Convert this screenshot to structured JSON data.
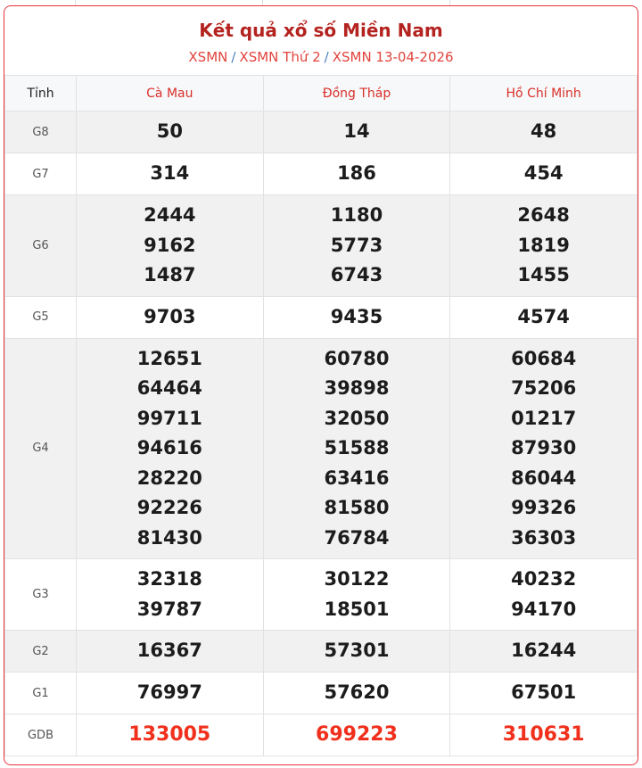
{
  "header": {
    "title": "Kết quả xổ số Miền Nam",
    "breadcrumbs": [
      "XSMN",
      "XSMN Thứ 2",
      "XSMN 13-04-2026"
    ],
    "separator": "/"
  },
  "table": {
    "columns": [
      "Tỉnh",
      "Cà Mau",
      "Đồng Tháp",
      "Hồ Chí Minh"
    ],
    "rows": [
      {
        "label": "G8",
        "values": [
          [
            "50"
          ],
          [
            "14"
          ],
          [
            "48"
          ]
        ]
      },
      {
        "label": "G7",
        "values": [
          [
            "314"
          ],
          [
            "186"
          ],
          [
            "454"
          ]
        ]
      },
      {
        "label": "G6",
        "values": [
          [
            "2444",
            "9162",
            "1487"
          ],
          [
            "1180",
            "5773",
            "6743"
          ],
          [
            "2648",
            "1819",
            "1455"
          ]
        ]
      },
      {
        "label": "G5",
        "values": [
          [
            "9703"
          ],
          [
            "9435"
          ],
          [
            "4574"
          ]
        ]
      },
      {
        "label": "G4",
        "values": [
          [
            "12651",
            "64464",
            "99711",
            "94616",
            "28220",
            "92226",
            "81430"
          ],
          [
            "60780",
            "39898",
            "32050",
            "51588",
            "63416",
            "81580",
            "76784"
          ],
          [
            "60684",
            "75206",
            "01217",
            "87930",
            "86044",
            "99326",
            "36303"
          ]
        ]
      },
      {
        "label": "G3",
        "values": [
          [
            "32318",
            "39787"
          ],
          [
            "30122",
            "18501"
          ],
          [
            "40232",
            "94170"
          ]
        ]
      },
      {
        "label": "G2",
        "values": [
          [
            "16367"
          ],
          [
            "57301"
          ],
          [
            "16244"
          ]
        ]
      },
      {
        "label": "G1",
        "values": [
          [
            "76997"
          ],
          [
            "57620"
          ],
          [
            "67501"
          ]
        ]
      },
      {
        "label": "GDB",
        "values": [
          [
            "133005"
          ],
          [
            "699223"
          ],
          [
            "310631"
          ]
        ]
      }
    ]
  },
  "colors": {
    "accent": "#e8333b",
    "title": "#b4231f",
    "special_prize": "#f0301c"
  }
}
